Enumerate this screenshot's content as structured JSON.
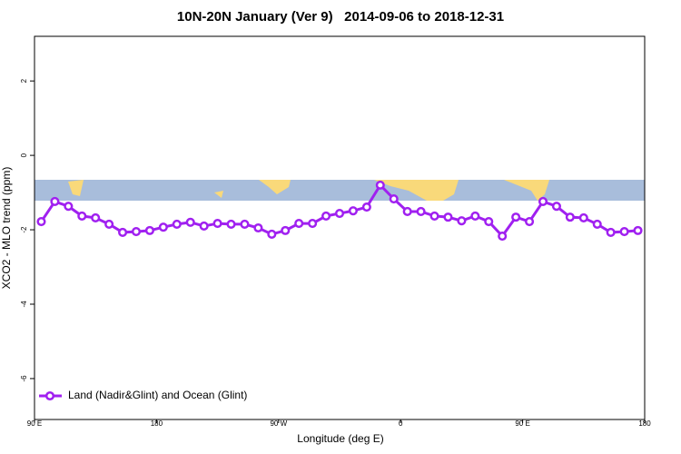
{
  "chart_data": {
    "type": "line",
    "title": "10N-20N January (Ver 9)   2014-09-06 to 2018-12-31",
    "xlabel": "Longitude (deg E)",
    "ylabel": "XCO2 - MLO trend (ppm)",
    "x": [
      95,
      105,
      115,
      125,
      135,
      145,
      155,
      165,
      175,
      185,
      195,
      205,
      215,
      225,
      235,
      245,
      255,
      265,
      275,
      285,
      295,
      305,
      315,
      325,
      335,
      345,
      355,
      365,
      375,
      385,
      395,
      405,
      415,
      425,
      435,
      445,
      455,
      465,
      475,
      485,
      495,
      505,
      515,
      525,
      535
    ],
    "series": [
      {
        "name": "Land (Nadir&Glint) and Ocean (Glint)",
        "color": "#a020f0",
        "values": [
          -1.78,
          -1.24,
          -1.37,
          -1.63,
          -1.68,
          -1.85,
          -2.07,
          -2.05,
          -2.02,
          -1.93,
          -1.85,
          -1.8,
          -1.9,
          -1.83,
          -1.85,
          -1.85,
          -1.95,
          -2.12,
          -2.02,
          -1.83,
          -1.83,
          -1.63,
          -1.56,
          -1.49,
          -1.39,
          -0.8,
          -1.17,
          -1.51,
          -1.51,
          -1.63,
          -1.66,
          -1.76,
          -1.63,
          -1.78,
          -2.17,
          -1.66,
          -1.78,
          -1.24,
          -1.37,
          -1.66,
          -1.68,
          -1.85,
          -2.07,
          -2.05,
          -2.02
        ]
      }
    ],
    "xlim": [
      90,
      540
    ],
    "xticks": [
      {
        "value": 90,
        "label": "90 E"
      },
      180,
      {
        "value": 270,
        "label": "90 W"
      },
      {
        "value": 360,
        "label": "0"
      },
      {
        "value": 450,
        "label": "90 E"
      },
      {
        "value": 540,
        "label": "180"
      }
    ],
    "ylim": [
      -7.1,
      3.2
    ],
    "yticks": [
      -6,
      -4,
      -2,
      0,
      2
    ],
    "legend": "bottom-left"
  }
}
